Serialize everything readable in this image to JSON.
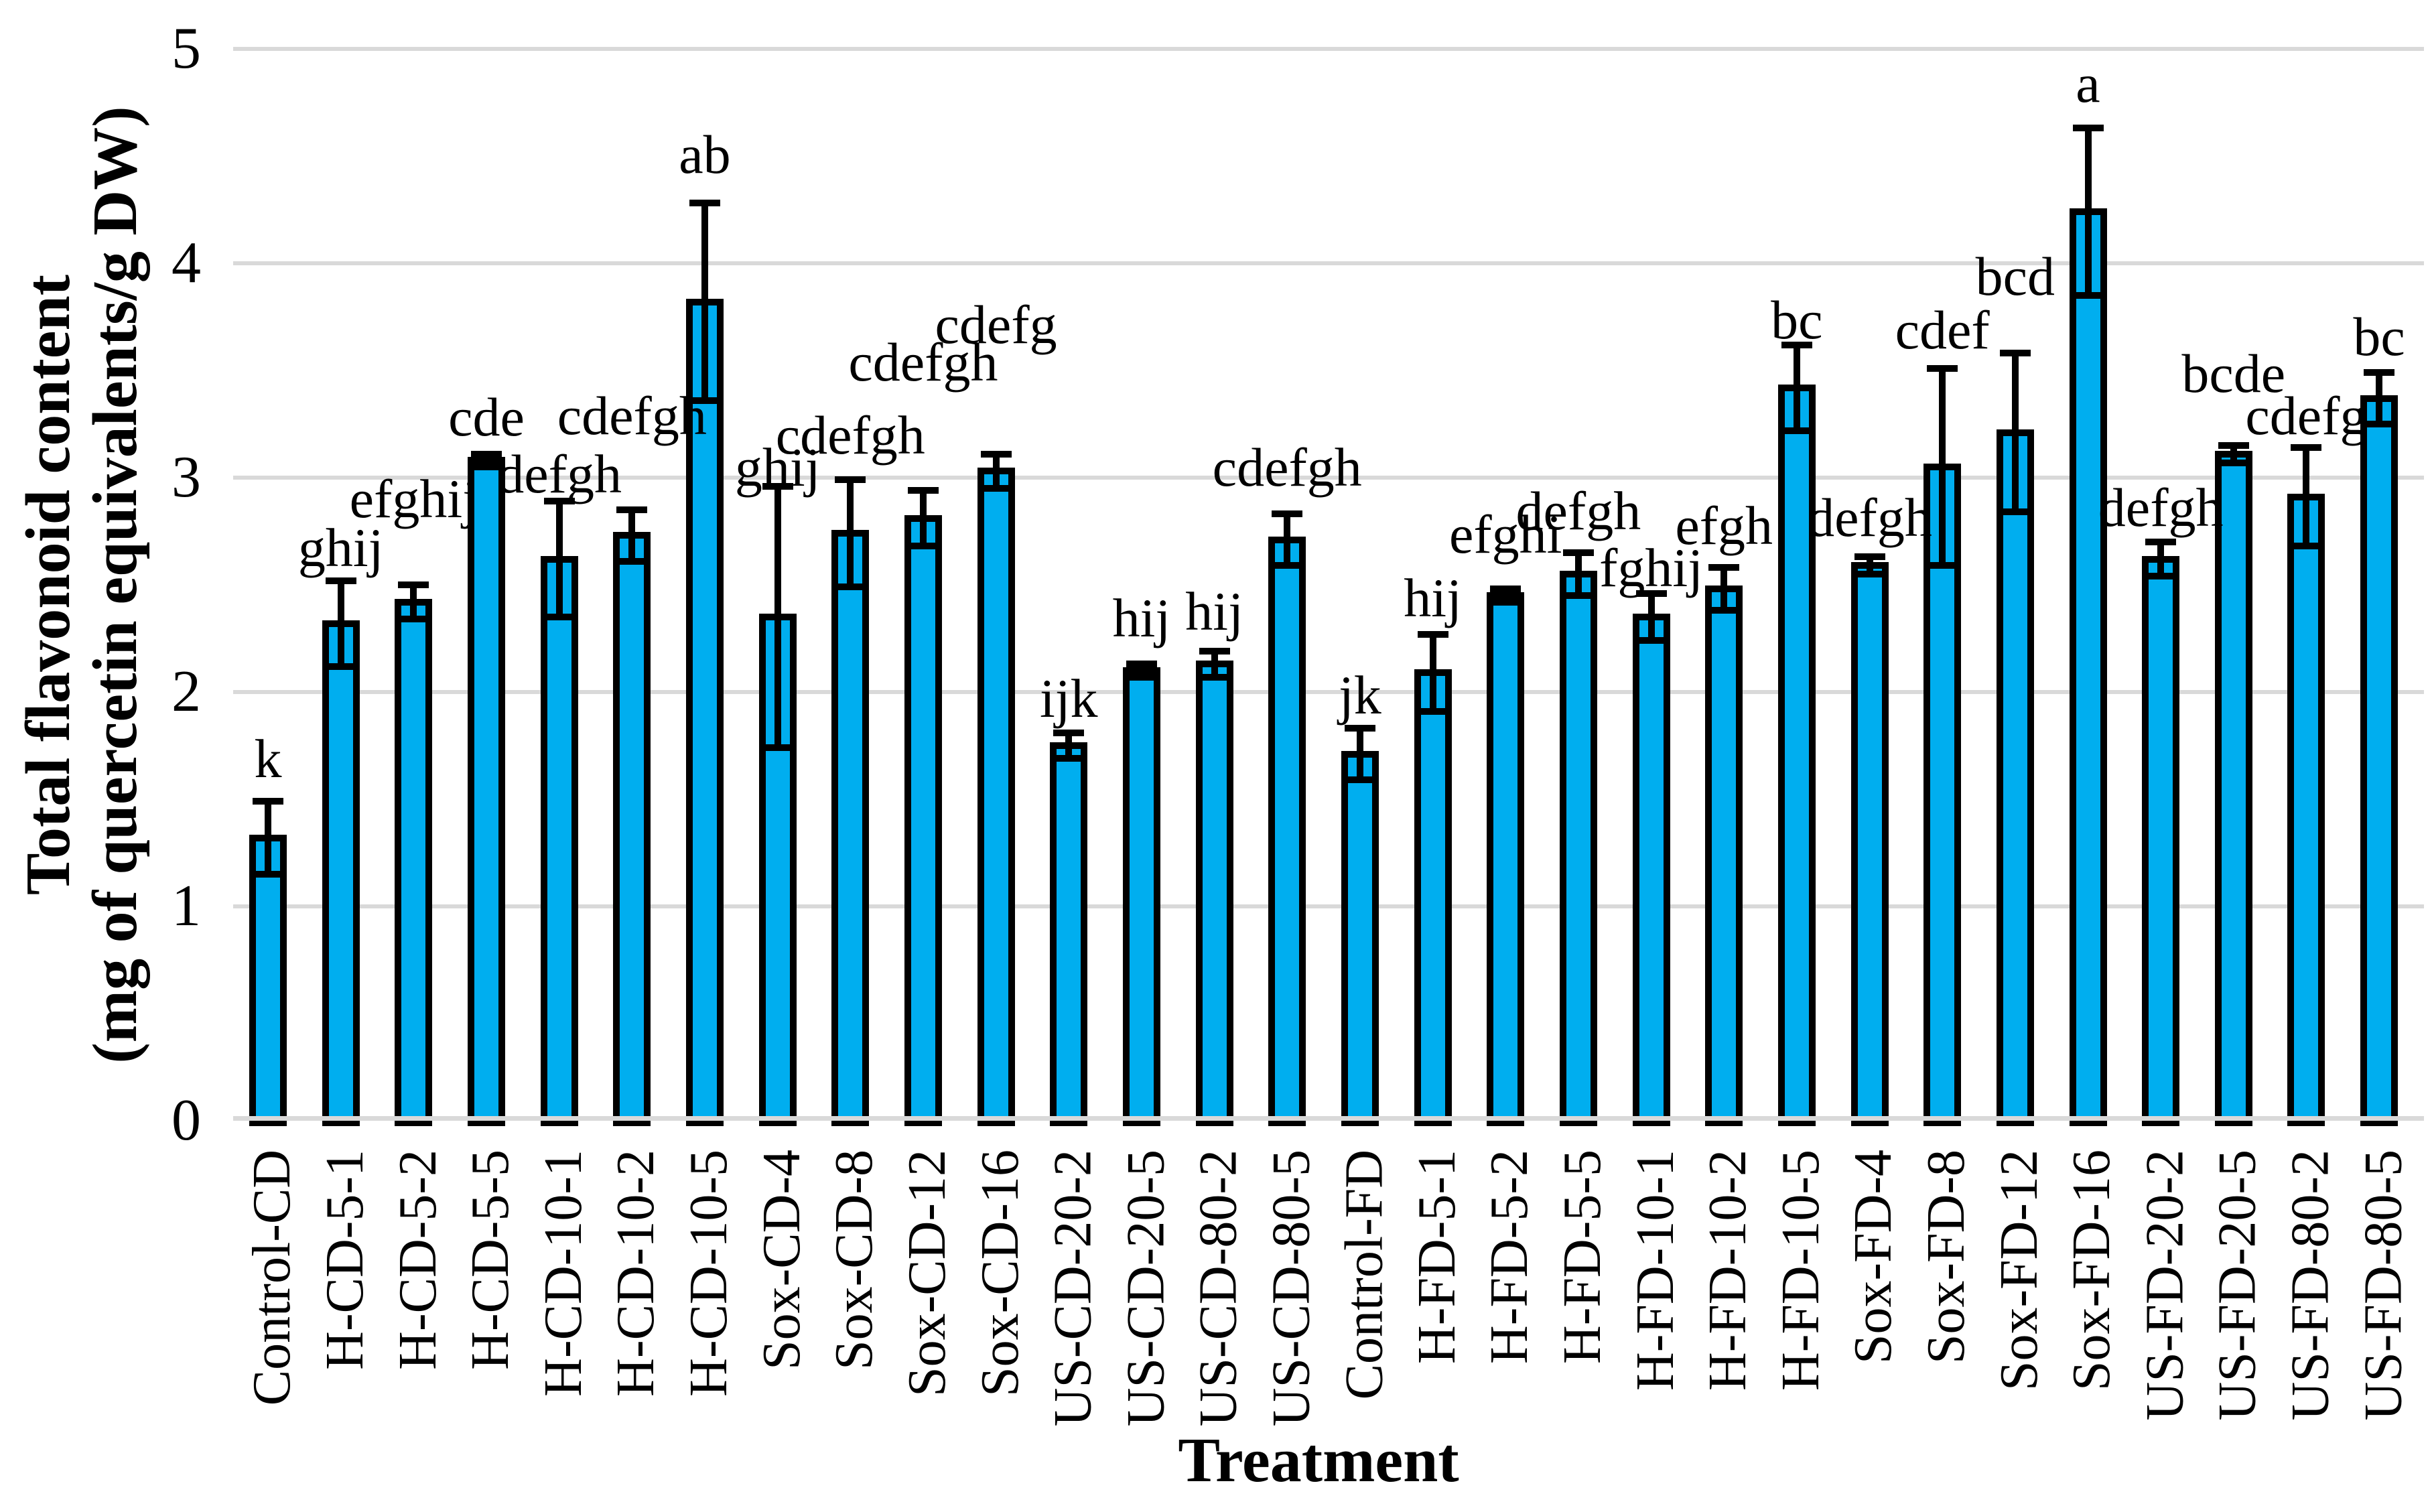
{
  "chart_data": {
    "type": "bar",
    "title": "",
    "xlabel": "Treatment",
    "ylabel_line1": "Total flavonoid content",
    "ylabel_line2": "(mg of quercetin equivalents/g DW)",
    "ylim": [
      0,
      5
    ],
    "yticks": [
      "0",
      "1",
      "2",
      "3",
      "4",
      "5"
    ],
    "grid": "horizontal-gridlines-on",
    "legend": "none",
    "bar_fill_color": "#00AEEF",
    "bar_border_color": "#000000",
    "gridline_color": "#D9D9D9",
    "error_bar_color": "#000000",
    "categories": [
      "Control-CD",
      "H-CD-5-1",
      "H-CD-5-2",
      "H-CD-5-5",
      "H-CD-10-1",
      "H-CD-10-2",
      "H-CD-10-5",
      "Sox-CD-4",
      "Sox-CD-8",
      "Sox-CD-12",
      "Sox-CD-16",
      "US-CD-20-2",
      "US-CD-20-5",
      "US-CD-80-2",
      "US-CD-80-5",
      "Control-FD",
      "H-FD-5-1",
      "H-FD-5-2",
      "H-FD-5-5",
      "H-FD-10-1",
      "H-FD-10-2",
      "H-FD-10-5",
      "Sox-FD-4",
      "Sox-FD-8",
      "Sox-FD-12",
      "Sox-FD-16",
      "US-FD-20-2",
      "US-FD-20-5",
      "US-FD-80-2",
      "US-FD-80-5"
    ],
    "values": [
      1.32,
      2.32,
      2.42,
      3.08,
      2.62,
      2.73,
      3.82,
      2.35,
      2.74,
      2.81,
      3.03,
      1.75,
      2.1,
      2.13,
      2.71,
      1.71,
      2.09,
      2.45,
      2.55,
      2.35,
      2.48,
      3.42,
      2.59,
      3.05,
      3.21,
      4.24,
      2.62,
      3.11,
      2.91,
      3.37
    ],
    "errors": [
      0.17,
      0.2,
      0.08,
      0.03,
      0.27,
      0.12,
      0.46,
      0.61,
      0.25,
      0.13,
      0.08,
      0.06,
      0.03,
      0.06,
      0.12,
      0.12,
      0.18,
      0.03,
      0.1,
      0.11,
      0.1,
      0.2,
      0.04,
      0.46,
      0.37,
      0.39,
      0.08,
      0.04,
      0.23,
      0.12
    ],
    "significance_letters": [
      "k",
      "ghij",
      "efghij",
      "cde",
      "defgh",
      "cdefgh",
      "ab",
      "ghij",
      "cdefgh",
      "cdefgh",
      "cdefg",
      "ijk",
      "hij",
      "hij",
      "cdefgh",
      "jk",
      "hij",
      "efghi",
      "defgh",
      "fghij",
      "efgh",
      "bc",
      "defgh",
      "cdef",
      "bcd",
      "a",
      "defgh",
      "bcde",
      "cdefg",
      "bc"
    ]
  }
}
